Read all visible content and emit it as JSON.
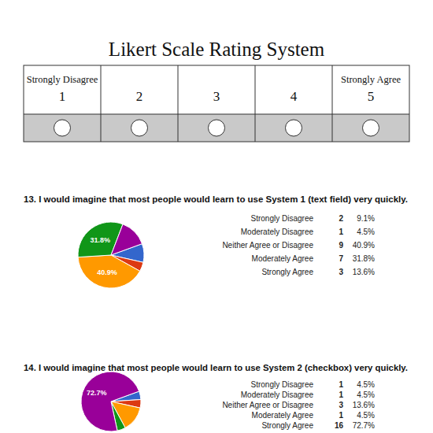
{
  "scale": {
    "title": "Likert Scale Rating System",
    "columns": [
      {
        "label": "Strongly Disagree",
        "value": 1
      },
      {
        "value": 2
      },
      {
        "value": 3
      },
      {
        "value": 4
      },
      {
        "label": "Strongly Agree",
        "value": 5
      }
    ]
  },
  "chart_data": [
    {
      "type": "pie",
      "title": "13. I would imagine that most people would learn to use System 1 (text field) very quickly.",
      "categories": [
        "Strongly Disagree",
        "Moderately Disagree",
        "Neither Agree or Disagree",
        "Moderately Agree",
        "Strongly Agree"
      ],
      "values": [
        9.1,
        4.5,
        40.9,
        31.8,
        13.6
      ],
      "counts": [
        2,
        1,
        9,
        7,
        3
      ],
      "percent_labels": [
        "9.1%",
        "4.5%",
        "40.9%",
        "31.8%",
        "13.6%"
      ],
      "value_labels": [
        null,
        null,
        "40.9%",
        "31.8%",
        null
      ],
      "data_labels": true,
      "colors": [
        "#3366cc",
        "#dc3912",
        "#ff9900",
        "#109618",
        "#990099"
      ]
    },
    {
      "type": "pie",
      "title": "14. I would imagine that most people would learn to use System 2 (checkbox) very quickly.",
      "categories": [
        "Strongly Disagree",
        "Moderately Disagree",
        "Neither Agree or Disagree",
        "Moderately Agree",
        "Strongly Agree"
      ],
      "values": [
        4.5,
        4.5,
        13.6,
        4.5,
        72.7
      ],
      "counts": [
        1,
        1,
        3,
        1,
        16
      ],
      "percent_labels": [
        "4.5%",
        "4.5%",
        "13.6%",
        "4.5%",
        "72.7%"
      ],
      "value_labels": [
        null,
        null,
        null,
        null,
        "72.7%"
      ],
      "data_labels": true,
      "colors": [
        "#3366cc",
        "#dc3912",
        "#ff9900",
        "#109618",
        "#990099"
      ]
    }
  ]
}
